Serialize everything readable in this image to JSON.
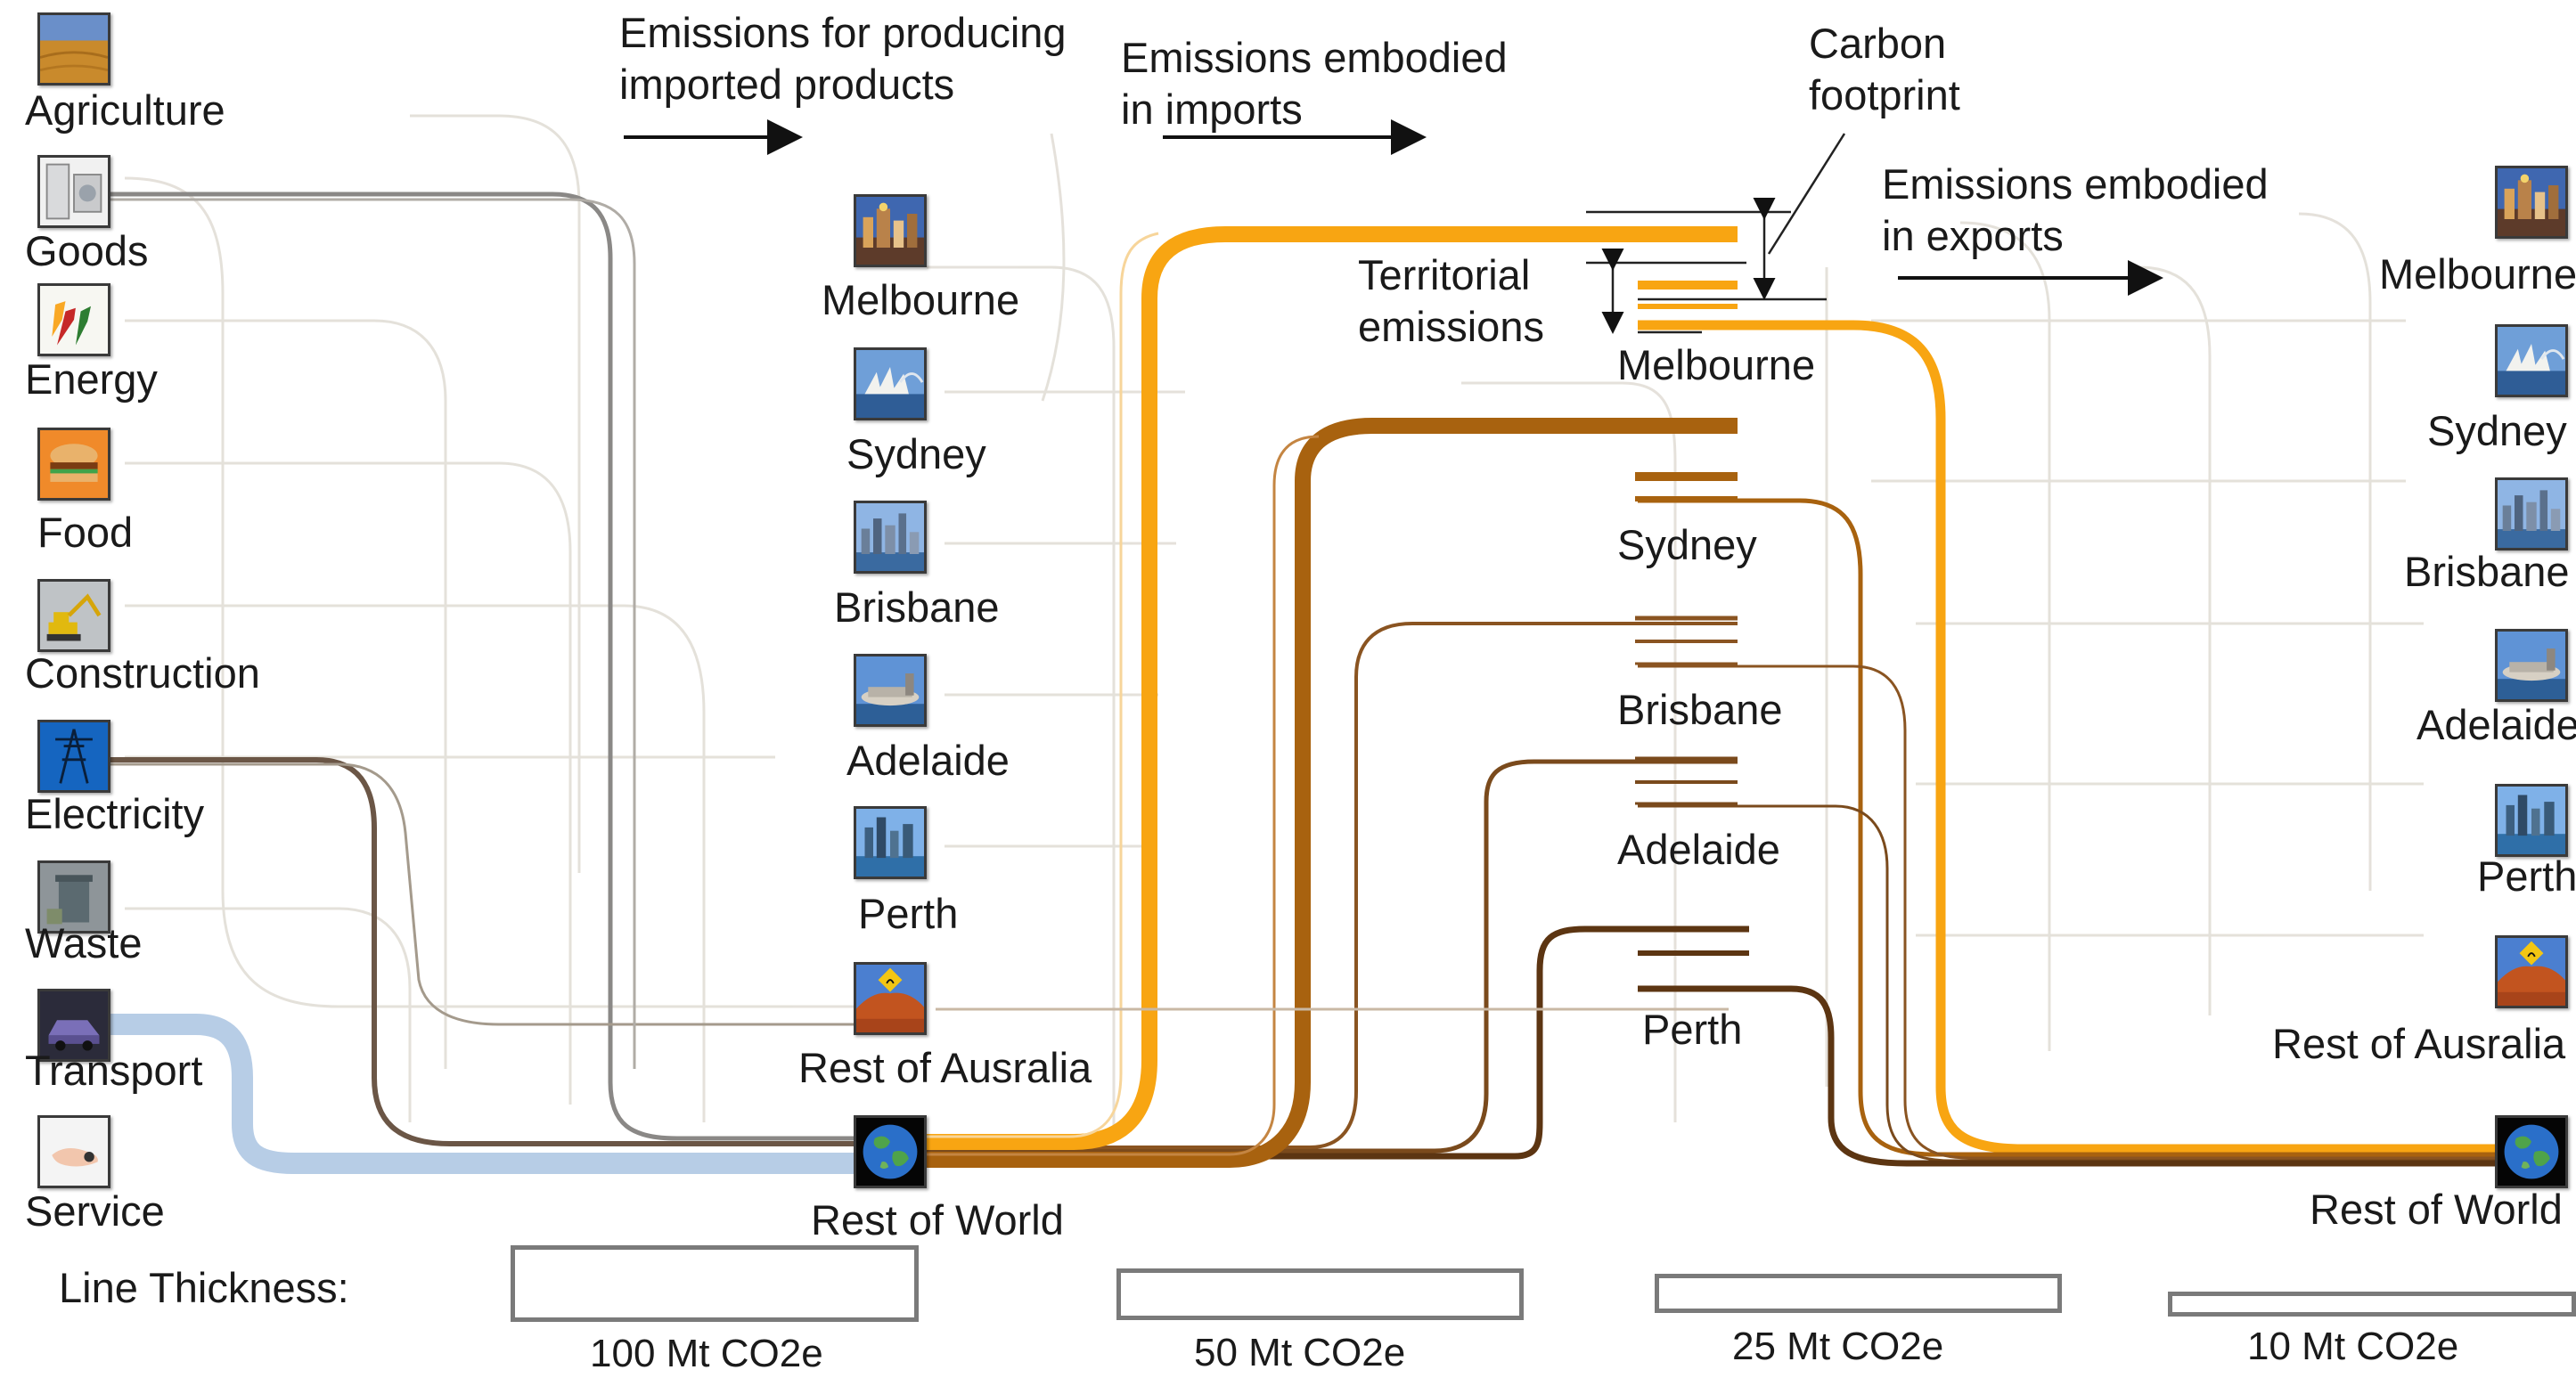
{
  "sectors": [
    {
      "label": "Agriculture",
      "icon": "wheat-field-icon"
    },
    {
      "label": "Goods",
      "icon": "appliances-icon"
    },
    {
      "label": "Energy",
      "icon": "fuel-nozzle-icon"
    },
    {
      "label": "Food",
      "icon": "burger-icon"
    },
    {
      "label": "Construction",
      "icon": "excavator-icon"
    },
    {
      "label": "Electricity",
      "icon": "power-pylon-icon"
    },
    {
      "label": "Waste",
      "icon": "waste-bin-icon"
    },
    {
      "label": "Transport",
      "icon": "car-icon"
    },
    {
      "label": "Service",
      "icon": "hand-icon"
    }
  ],
  "import_regions": [
    {
      "label": "Melbourne",
      "icon": "melbourne-city-icon"
    },
    {
      "label": "Sydney",
      "icon": "sydney-opera-house-icon"
    },
    {
      "label": "Brisbane",
      "icon": "brisbane-skyline-icon"
    },
    {
      "label": "Adelaide",
      "icon": "adelaide-oval-icon"
    },
    {
      "label": "Perth",
      "icon": "perth-skyline-icon"
    },
    {
      "label": "Rest of Ausralia",
      "icon": "uluru-kangaroo-icon"
    },
    {
      "label": "Rest of World",
      "icon": "globe-icon"
    }
  ],
  "cities": [
    {
      "label": "Melbourne",
      "color": "#f8a512"
    },
    {
      "label": "Sydney",
      "color": "#a8620f"
    },
    {
      "label": "Brisbane",
      "color": "#8a5421"
    },
    {
      "label": "Adelaide",
      "color": "#7a4a1c"
    },
    {
      "label": "Perth",
      "color": "#5c3512"
    }
  ],
  "export_regions": [
    {
      "label": "Melbourne",
      "icon": "melbourne-city-icon"
    },
    {
      "label": "Sydney",
      "icon": "sydney-opera-house-icon"
    },
    {
      "label": "Brisbane",
      "icon": "brisbane-skyline-icon"
    },
    {
      "label": "Adelaide",
      "icon": "adelaide-oval-icon"
    },
    {
      "label": "Perth",
      "icon": "perth-skyline-icon"
    },
    {
      "label": "Rest of Ausralia",
      "icon": "uluru-kangaroo-icon"
    },
    {
      "label": "Rest of World",
      "icon": "globe-icon"
    }
  ],
  "headers": {
    "producing_line1": "Emissions for producing",
    "producing_line2": "imported products",
    "imports_line1": "Emissions embodied",
    "imports_line2": "in imports",
    "carbon_line1": "Carbon",
    "carbon_line2": "footprint",
    "territorial_line1": "Territorial",
    "territorial_line2": "emissions",
    "exports_line1": "Emissions embodied",
    "exports_line2": "in exports"
  },
  "legend": {
    "title": "Line Thickness:",
    "items": [
      {
        "label": "100 Mt CO2e",
        "value": 100
      },
      {
        "label": "50 Mt CO2e",
        "value": 50
      },
      {
        "label": "25 Mt CO2e",
        "value": 25
      },
      {
        "label": "10 Mt CO2e",
        "value": 10
      }
    ]
  },
  "colors": {
    "transport_flow": "#b7cde6",
    "goods_flow": "#8a8886",
    "electricity_flow": "#6b5646",
    "melbourne": "#f8a512",
    "sydney": "#a8620f",
    "brisbane": "#8a5421",
    "adelaide": "#7a4a1c",
    "perth": "#5c3512",
    "arrow": "#111111"
  }
}
